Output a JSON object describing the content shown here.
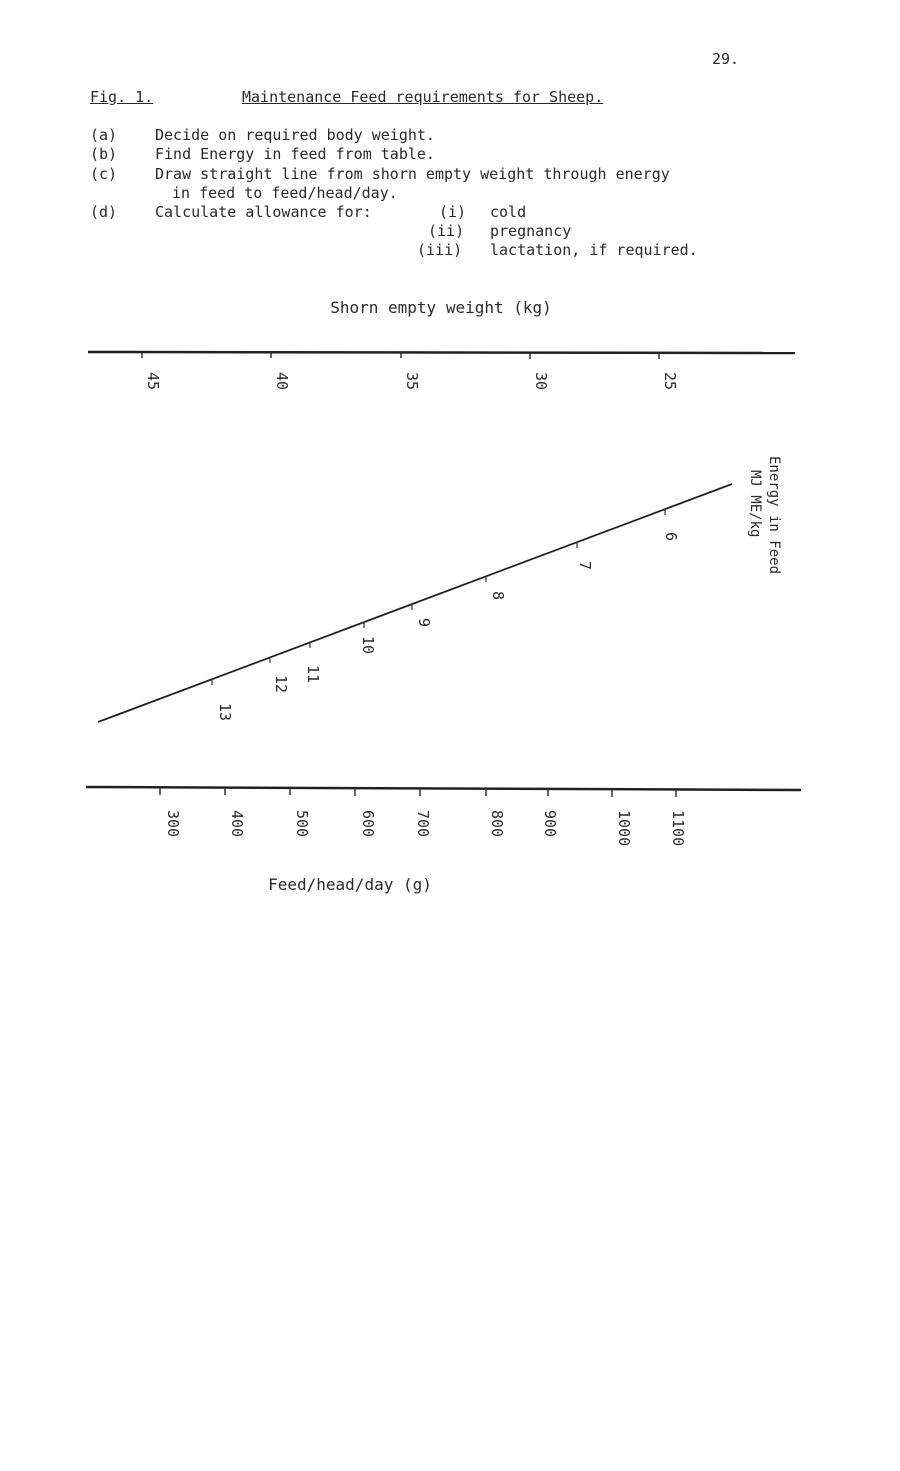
{
  "page_number": "29.",
  "figure": {
    "label": "Fig. 1.",
    "title": "Maintenance Feed requirements for Sheep."
  },
  "steps": [
    {
      "key": "(a)",
      "text": "Decide on required body weight."
    },
    {
      "key": "(b)",
      "text": "Find Energy in feed from table."
    },
    {
      "key": "(c)",
      "text": "Draw straight line from shorn empty weight through energy",
      "continuation": "in feed to feed/head/day."
    },
    {
      "key": "(d)",
      "text": "Calculate allowance for:"
    }
  ],
  "allowances": [
    {
      "key": "(i)",
      "text": "cold"
    },
    {
      "key": "(ii)",
      "text": "pregnancy"
    },
    {
      "key": "(iii)",
      "text": "lactation, if required."
    }
  ],
  "nomogram": {
    "top_scale": {
      "label": "Shorn empty weight (kg)",
      "ticks": [
        "45",
        "40",
        "35",
        "30",
        "25"
      ]
    },
    "middle_scale": {
      "label_line1": "Energy in Feed",
      "label_line2": "MJ ME/kg",
      "ticks": [
        "6",
        "7",
        "8",
        "9",
        "10",
        "11",
        "12",
        "13"
      ]
    },
    "bottom_scale": {
      "label": "Feed/head/day (g)",
      "ticks": [
        "300",
        "400",
        "500",
        "600",
        "700",
        "800",
        "900",
        "1000",
        "1100"
      ]
    }
  }
}
